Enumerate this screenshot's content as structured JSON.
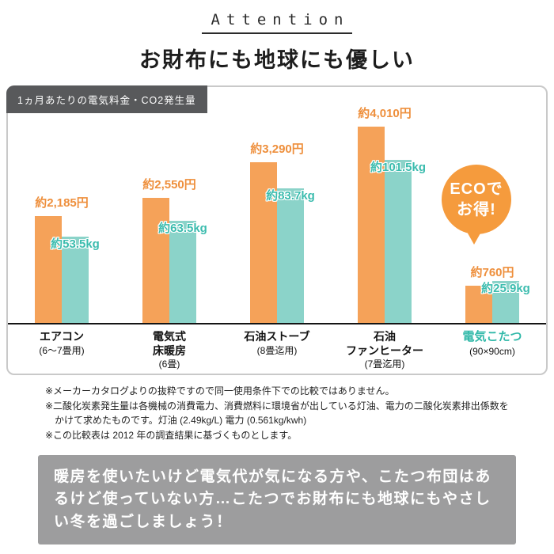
{
  "header": {
    "attention_label": "Attention",
    "title": "お財布にも地球にも優しい"
  },
  "chart_data": {
    "type": "bar",
    "title": "1ヵ月あたりの電気料金・CO2発生量",
    "categories": [
      {
        "name_lines": [
          "エアコン"
        ],
        "size": "(6〜7畳用)",
        "accent": false
      },
      {
        "name_lines": [
          "電気式",
          "床暖房"
        ],
        "size": "(6畳)",
        "accent": false
      },
      {
        "name_lines": [
          "石油ストーブ"
        ],
        "size": "(8畳迄用)",
        "accent": false
      },
      {
        "name_lines": [
          "石油",
          "ファンヒーター"
        ],
        "size": "(7畳迄用)",
        "accent": false
      },
      {
        "name_lines": [
          "電気こたつ"
        ],
        "size": "(90×90cm)",
        "accent": true
      }
    ],
    "series": [
      {
        "name": "電気料金",
        "unit": "円",
        "bar_color": "#f5a259",
        "label_color": "#ee8f3c",
        "values": [
          2185,
          2550,
          3290,
          4010,
          760
        ],
        "labels": [
          "約2,185円",
          "約2,550円",
          "約3,290円",
          "約4,010円",
          "約760円"
        ]
      },
      {
        "name": "CO2発生量",
        "unit": "kg",
        "bar_color": "#8bd3c9",
        "label_color": "#3bbcae",
        "values": [
          53.5,
          63.5,
          83.7,
          101.5,
          25.9
        ],
        "labels": [
          "約53.5kg",
          "約63.5kg",
          "約83.7kg",
          "約101.5kg",
          "約25.9kg"
        ]
      }
    ],
    "badge": {
      "lines": [
        "ECOで",
        "お得!"
      ],
      "color": "#f59b3d"
    },
    "accent_text_color": "#2fb8a8",
    "ylim_price": [
      0,
      4010
    ],
    "ylim_co2": [
      0,
      101.5
    ],
    "legend": "none",
    "grid": false
  },
  "notes": [
    "※メーカーカタログよりの抜粋ですので同一使用条件下での比較ではありません。",
    "※二酸化炭素発生量は各機械の消費電力、消費燃料に環境省が出している灯油、電力の二酸化炭素排出係数をかけて求めたものです。灯油 (2.49kg/L) 電力 (0.561kg/kwh)",
    "※この比較表は 2012 年の調査結果に基づくものとします。"
  ],
  "footer": {
    "message": "暖房を使いたいけど電気代が気になる方や、こたつ布団はあるけど使っていない方…こたつでお財布にも地球にもやさしい冬を過ごしましょう！"
  }
}
